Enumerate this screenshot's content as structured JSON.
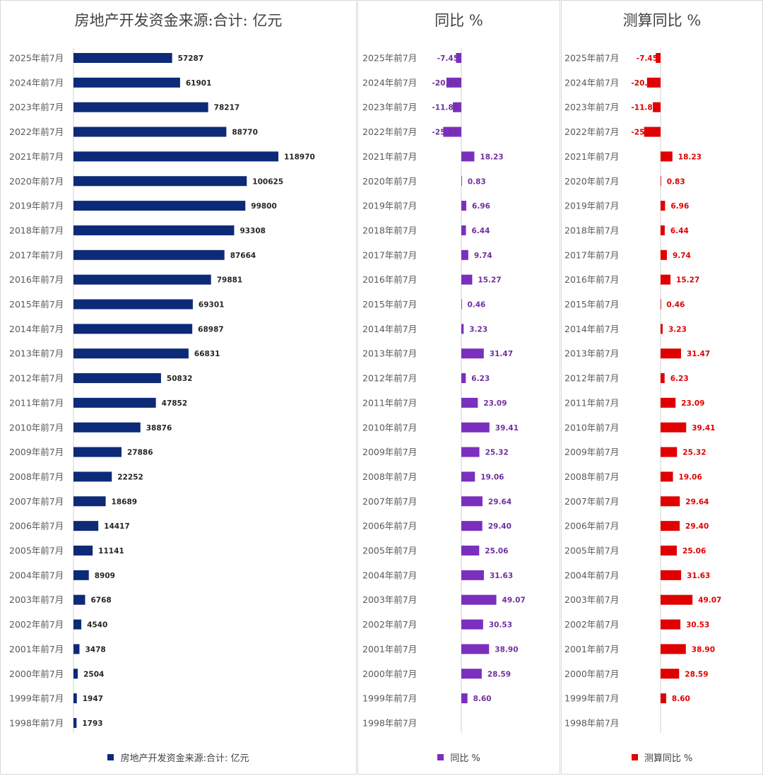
{
  "chart_data": [
    {
      "type": "bar",
      "orientation": "horizontal",
      "title": "房地产开发资金来源:合计: 亿元",
      "categories": [
        "2025年前7月",
        "2024年前7月",
        "2023年前7月",
        "2022年前7月",
        "2021年前7月",
        "2020年前7月",
        "2019年前7月",
        "2018年前7月",
        "2017年前7月",
        "2016年前7月",
        "2015年前7月",
        "2014年前7月",
        "2013年前7月",
        "2012年前7月",
        "2011年前7月",
        "2010年前7月",
        "2009年前7月",
        "2008年前7月",
        "2007年前7月",
        "2006年前7月",
        "2005年前7月",
        "2004年前7月",
        "2003年前7月",
        "2002年前7月",
        "2001年前7月",
        "2000年前7月",
        "1999年前7月",
        "1998年前7月"
      ],
      "series": [
        {
          "name": "房地产开发资金来源:合计: 亿元",
          "color": "#0d2a78",
          "values": [
            57287,
            61901,
            78217,
            88770,
            118970,
            100625,
            99800,
            93308,
            87664,
            79881,
            69301,
            68987,
            66831,
            50832,
            47852,
            38876,
            27886,
            22252,
            18689,
            14417,
            11141,
            8909,
            6768,
            4540,
            3478,
            2504,
            1947,
            1793
          ]
        }
      ],
      "value_labels": [
        "57287",
        "61901",
        "78217",
        "88770",
        "118970",
        "100625",
        "99800",
        "93308",
        "87664",
        "79881",
        "69301",
        "68987",
        "66831",
        "50832",
        "47852",
        "38876",
        "27886",
        "22252",
        "18689",
        "14417",
        "11141",
        "8909",
        "6768",
        "4540",
        "3478",
        "2504",
        "1947",
        "1793"
      ],
      "label_color": "#262626",
      "legend": "bottom",
      "grid": false
    },
    {
      "type": "bar",
      "orientation": "horizontal",
      "title": "同比 %",
      "categories": [
        "2025年前7月",
        "2024年前7月",
        "2023年前7月",
        "2022年前7月",
        "2021年前7月",
        "2020年前7月",
        "2019年前7月",
        "2018年前7月",
        "2017年前7月",
        "2016年前7月",
        "2015年前7月",
        "2014年前7月",
        "2013年前7月",
        "2012年前7月",
        "2011年前7月",
        "2010年前7月",
        "2009年前7月",
        "2008年前7月",
        "2007年前7月",
        "2006年前7月",
        "2005年前7月",
        "2004年前7月",
        "2003年前7月",
        "2002年前7月",
        "2001年前7月",
        "2000年前7月",
        "1999年前7月",
        "1998年前7月"
      ],
      "series": [
        {
          "name": "同比 %",
          "color": "#7b2fbe",
          "values": [
            -7.45,
            -20.86,
            -11.89,
            -25.38,
            18.23,
            0.83,
            6.96,
            6.44,
            9.74,
            15.27,
            0.46,
            3.23,
            31.47,
            6.23,
            23.09,
            39.41,
            25.32,
            19.06,
            29.64,
            29.4,
            25.06,
            31.63,
            49.07,
            30.53,
            38.9,
            28.59,
            8.6,
            null
          ]
        }
      ],
      "value_labels": [
        "-7.45",
        "-20.86",
        "-11.89",
        "-25.38",
        "18.23",
        "0.83",
        "6.96",
        "6.44",
        "9.74",
        "15.27",
        "0.46",
        "3.23",
        "31.47",
        "6.23",
        "23.09",
        "39.41",
        "25.32",
        "19.06",
        "29.64",
        "29.40",
        "25.06",
        "31.63",
        "49.07",
        "30.53",
        "38.90",
        "28.59",
        "8.60",
        ""
      ],
      "label_color": "#7030a0",
      "legend": "bottom",
      "grid": false
    },
    {
      "type": "bar",
      "orientation": "horizontal",
      "title": "测算同比 %",
      "categories": [
        "2025年前7月",
        "2024年前7月",
        "2023年前7月",
        "2022年前7月",
        "2021年前7月",
        "2020年前7月",
        "2019年前7月",
        "2018年前7月",
        "2017年前7月",
        "2016年前7月",
        "2015年前7月",
        "2014年前7月",
        "2013年前7月",
        "2012年前7月",
        "2011年前7月",
        "2010年前7月",
        "2009年前7月",
        "2008年前7月",
        "2007年前7月",
        "2006年前7月",
        "2005年前7月",
        "2004年前7月",
        "2003年前7月",
        "2002年前7月",
        "2001年前7月",
        "2000年前7月",
        "1999年前7月",
        "1998年前7月"
      ],
      "series": [
        {
          "name": "测算同比 %",
          "color": "#e00000",
          "values": [
            -7.45,
            -20.86,
            -11.89,
            -25.38,
            18.23,
            0.83,
            6.96,
            6.44,
            9.74,
            15.27,
            0.46,
            3.23,
            31.47,
            6.23,
            23.09,
            39.41,
            25.32,
            19.06,
            29.64,
            29.4,
            25.06,
            31.63,
            49.07,
            30.53,
            38.9,
            28.59,
            8.6,
            null
          ]
        }
      ],
      "value_labels": [
        "-7.45",
        "-20.86",
        "-11.89",
        "-25.38",
        "18.23",
        "0.83",
        "6.96",
        "6.44",
        "9.74",
        "15.27",
        "0.46",
        "3.23",
        "31.47",
        "6.23",
        "23.09",
        "39.41",
        "25.32",
        "19.06",
        "29.64",
        "29.40",
        "25.06",
        "31.63",
        "49.07",
        "30.53",
        "38.90",
        "28.59",
        "8.60",
        ""
      ],
      "label_color": "#e00000",
      "legend": "bottom",
      "grid": false
    }
  ]
}
